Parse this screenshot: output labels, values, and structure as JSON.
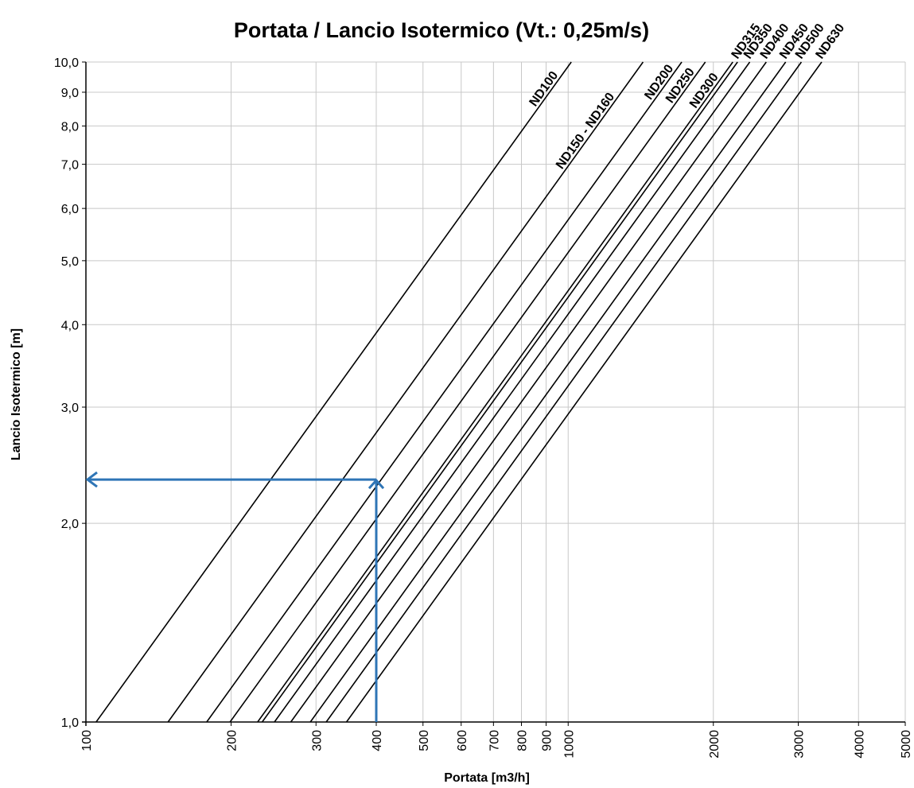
{
  "chart_data": {
    "type": "line",
    "title": "Portata / Lancio Isotermico (Vt.: 0,25m/s)",
    "xlabel": "Portata [m3/h]",
    "ylabel": "Lancio Isotermico [m]",
    "x_scale": "log",
    "y_scale": "log",
    "xlim": [
      100,
      5000
    ],
    "ylim": [
      1.0,
      10.0
    ],
    "grid": true,
    "x_ticks": [
      100,
      200,
      300,
      400,
      500,
      600,
      700,
      800,
      900,
      1000,
      2000,
      3000,
      4000,
      5000
    ],
    "x_tick_labels": [
      "100",
      "200",
      "300",
      "400",
      "500",
      "600",
      "700",
      "800",
      "900",
      "1000",
      "2000",
      "3000",
      "4000",
      "5000"
    ],
    "y_ticks": [
      1.0,
      2.0,
      3.0,
      4.0,
      5.0,
      6.0,
      7.0,
      8.0,
      9.0,
      10.0
    ],
    "y_tick_labels": [
      "1,0",
      "2,0",
      "3,0",
      "4,0",
      "5,0",
      "6,0",
      "7,0",
      "8,0",
      "9,0",
      "10,0"
    ],
    "series": [
      {
        "name": "ND100",
        "x": [
          105,
          1015
        ],
        "y": [
          1.0,
          10.0
        ]
      },
      {
        "name": "ND150 - ND160",
        "x": [
          148,
          1430
        ],
        "y": [
          1.0,
          10.0
        ]
      },
      {
        "name": "ND200",
        "x": [
          178,
          1720
        ],
        "y": [
          1.0,
          10.0
        ]
      },
      {
        "name": "ND250",
        "x": [
          199,
          1925
        ],
        "y": [
          1.0,
          10.0
        ]
      },
      {
        "name": "ND300",
        "x": [
          227,
          2195
        ],
        "y": [
          1.0,
          10.0
        ]
      },
      {
        "name": "ND315",
        "x": [
          232,
          2245
        ],
        "y": [
          1.0,
          10.0
        ]
      },
      {
        "name": "ND350",
        "x": [
          246,
          2380
        ],
        "y": [
          1.0,
          10.0
        ]
      },
      {
        "name": "ND400",
        "x": [
          266,
          2575
        ],
        "y": [
          1.0,
          10.0
        ]
      },
      {
        "name": "ND450",
        "x": [
          292,
          2825
        ],
        "y": [
          1.0,
          10.0
        ]
      },
      {
        "name": "ND500",
        "x": [
          315,
          3045
        ],
        "y": [
          1.0,
          10.0
        ]
      },
      {
        "name": "ND630",
        "x": [
          347,
          3355
        ],
        "y": [
          1.0,
          10.0
        ]
      }
    ],
    "example_reading": {
      "portata": 400,
      "lancio": 2.33,
      "color": "#2e75b6"
    }
  }
}
